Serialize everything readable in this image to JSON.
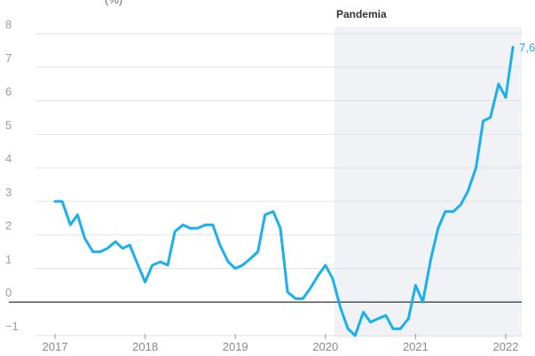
{
  "chart_data": {
    "type": "line",
    "title_fragment": "(%)",
    "xlabel": "",
    "ylabel": "",
    "ylim": [
      -1,
      8
    ],
    "y_ticks": [
      "8",
      "7",
      "6",
      "5",
      "4",
      "3",
      "2",
      "1",
      "0",
      "−1"
    ],
    "y_tick_values": [
      8,
      7,
      6,
      5,
      4,
      3,
      2,
      1,
      0,
      -1
    ],
    "x_ticks": [
      "2017",
      "2018",
      "2019",
      "2020",
      "2021",
      "2022"
    ],
    "x_tick_values": [
      2017,
      2018,
      2019,
      2020,
      2021,
      2022
    ],
    "xlim": [
      2016.82,
      2022.2
    ],
    "grid": true,
    "shaded_region": {
      "label": "Pandemia",
      "start": 2020.1,
      "end": 2022.2
    },
    "end_label": "7,6",
    "colors": {
      "line": "#1ab0f0",
      "band": "#f1f2f5",
      "zero_line": "#333333"
    },
    "series": [
      {
        "x": [
          2017.0,
          2017.08,
          2017.17,
          2017.25,
          2017.33,
          2017.42,
          2017.5,
          2017.58,
          2017.67,
          2017.75,
          2017.83,
          2017.92,
          2018.0,
          2018.08,
          2018.17,
          2018.25,
          2018.33,
          2018.42,
          2018.5,
          2018.58,
          2018.67,
          2018.75,
          2018.83,
          2018.92,
          2019.0,
          2019.08,
          2019.17,
          2019.25,
          2019.33,
          2019.42,
          2019.5,
          2019.58,
          2019.67,
          2019.75,
          2019.83,
          2019.92,
          2020.0,
          2020.08,
          2020.17,
          2020.25,
          2020.33,
          2020.42,
          2020.5,
          2020.58,
          2020.67,
          2020.75,
          2020.83,
          2020.92,
          2021.0,
          2021.08,
          2021.17,
          2021.25,
          2021.33,
          2021.42,
          2021.5,
          2021.58,
          2021.67,
          2021.75,
          2021.83,
          2021.92,
          2022.0,
          2022.08
        ],
        "values": [
          3.0,
          3.0,
          2.3,
          2.6,
          1.9,
          1.5,
          1.5,
          1.6,
          1.8,
          1.6,
          1.7,
          1.1,
          0.6,
          1.1,
          1.2,
          1.1,
          2.1,
          2.3,
          2.2,
          2.2,
          2.3,
          2.3,
          1.7,
          1.2,
          1.0,
          1.1,
          1.3,
          1.5,
          2.6,
          2.7,
          2.2,
          0.3,
          0.1,
          0.1,
          0.4,
          0.8,
          1.1,
          0.7,
          -0.2,
          -0.8,
          -1.0,
          -0.3,
          -0.6,
          -0.5,
          -0.4,
          -0.8,
          -0.8,
          -0.5,
          0.5,
          0.0,
          1.3,
          2.2,
          2.7,
          2.7,
          2.9,
          3.3,
          4.0,
          5.4,
          5.5,
          6.5,
          6.1,
          7.6
        ]
      }
    ]
  }
}
